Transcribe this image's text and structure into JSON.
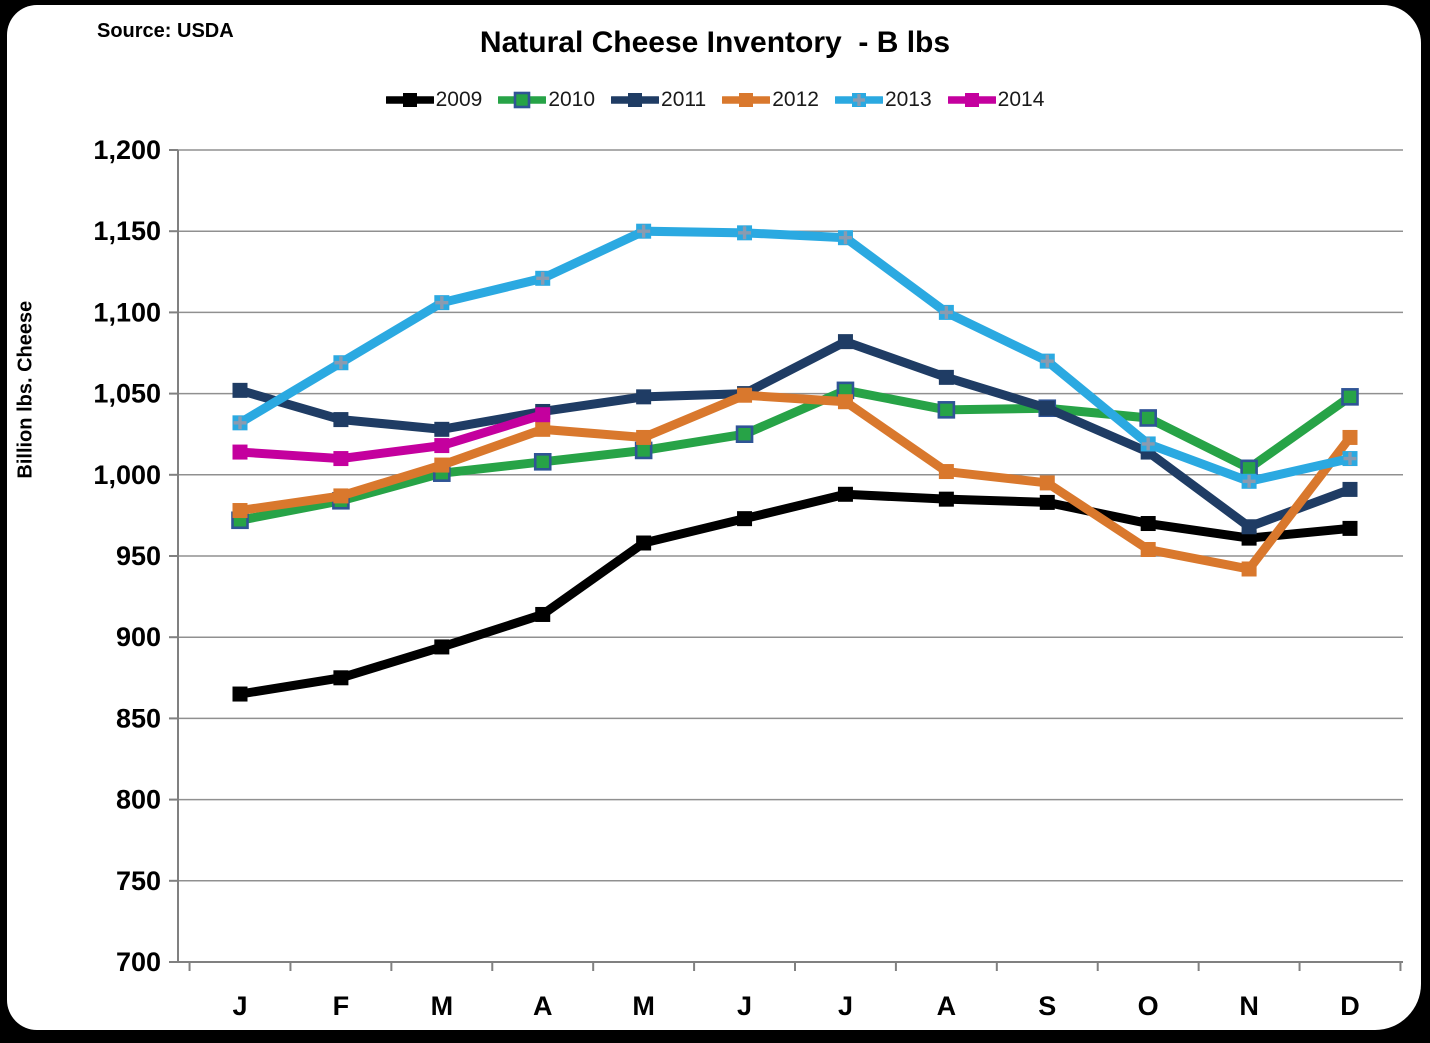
{
  "header": {
    "source": "Source: USDA",
    "title": "Natural Cheese Inventory  - B lbs"
  },
  "chart_data": {
    "type": "line",
    "title": "Natural Cheese Inventory - B lbs",
    "ylabel": "Billion lbs. Cheese",
    "xlabel": "",
    "categories": [
      "J",
      "F",
      "M",
      "A",
      "M",
      "J",
      "J",
      "A",
      "S",
      "O",
      "N",
      "D"
    ],
    "ylim": [
      700,
      1200
    ],
    "ytick_step": 50,
    "grid": "horizontal",
    "grid_color": "#909090",
    "axis_color": "#808080",
    "legend_position": "top",
    "series": [
      {
        "name": "2009",
        "color": "#000000",
        "marker": "square",
        "values": [
          865,
          875,
          894,
          914,
          958,
          973,
          988,
          985,
          983,
          970,
          961,
          967
        ]
      },
      {
        "name": "2010",
        "color": "#27A347",
        "marker": "square",
        "marker_border": "#2F5496",
        "values": [
          972,
          984,
          1001,
          1008,
          1015,
          1025,
          1052,
          1040,
          1041,
          1035,
          1004,
          1048
        ]
      },
      {
        "name": "2011",
        "color": "#1F3C64",
        "marker": "square",
        "values": [
          1052,
          1034,
          1028,
          1039,
          1048,
          1050,
          1082,
          1060,
          1041,
          1014,
          968,
          991
        ]
      },
      {
        "name": "2012",
        "color": "#D9782D",
        "marker": "square",
        "values": [
          978,
          987,
          1006,
          1028,
          1023,
          1049,
          1045,
          1002,
          995,
          954,
          942,
          1023
        ]
      },
      {
        "name": "2013",
        "color": "#2BA9E1",
        "marker": "plus",
        "marker_plus_color": "#8A9BB0",
        "values": [
          1032,
          1069,
          1106,
          1121,
          1150,
          1149,
          1146,
          1100,
          1070,
          1019,
          996,
          1010
        ]
      },
      {
        "name": "2014",
        "color": "#C4009E",
        "marker": "square",
        "values": [
          1014,
          1010,
          1018,
          1037,
          null,
          null,
          null,
          null,
          null,
          null,
          null,
          null
        ]
      }
    ]
  }
}
